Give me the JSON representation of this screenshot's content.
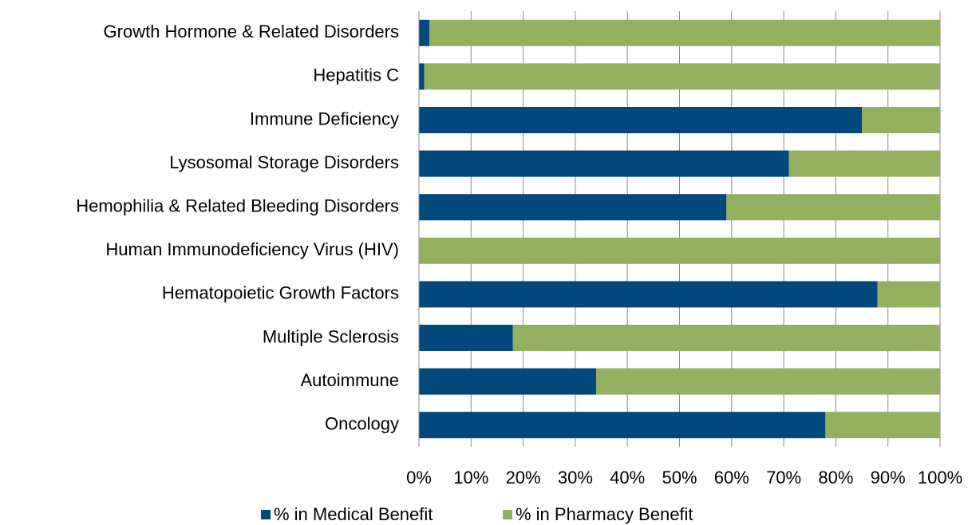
{
  "chart_data": {
    "type": "stacked_barh",
    "categories": [
      "Growth Hormone & Related Disorders",
      "Hepatitis C",
      "Immune Deficiency",
      "Lysosomal Storage Disorders",
      "Hemophilia & Related Bleeding Disorders",
      "Human Immunodeficiency Virus (HIV)",
      "Hematopoietic Growth Factors",
      "Multiple Sclerosis",
      "Autoimmune",
      "Oncology"
    ],
    "series": [
      {
        "name": "% in Medical Benefit",
        "color": "#00497a",
        "values": [
          2,
          1,
          85,
          71,
          59,
          0,
          88,
          18,
          34,
          78
        ]
      },
      {
        "name": "% in Pharmacy Benefit",
        "color": "#93b060",
        "values": [
          98,
          99,
          15,
          29,
          41,
          100,
          12,
          82,
          66,
          22
        ]
      }
    ],
    "xlim": [
      0,
      100
    ],
    "xticks": [
      {
        "value": 0,
        "label": "0%"
      },
      {
        "value": 10,
        "label": "10%"
      },
      {
        "value": 20,
        "label": "20%"
      },
      {
        "value": 30,
        "label": "30%"
      },
      {
        "value": 40,
        "label": "40%"
      },
      {
        "value": 50,
        "label": "50%"
      },
      {
        "value": 60,
        "label": "60%"
      },
      {
        "value": 70,
        "label": "70%"
      },
      {
        "value": 80,
        "label": "80%"
      },
      {
        "value": 90,
        "label": "90%"
      },
      {
        "value": 100,
        "label": "100%"
      }
    ],
    "grid": true,
    "legend": "bottom"
  }
}
